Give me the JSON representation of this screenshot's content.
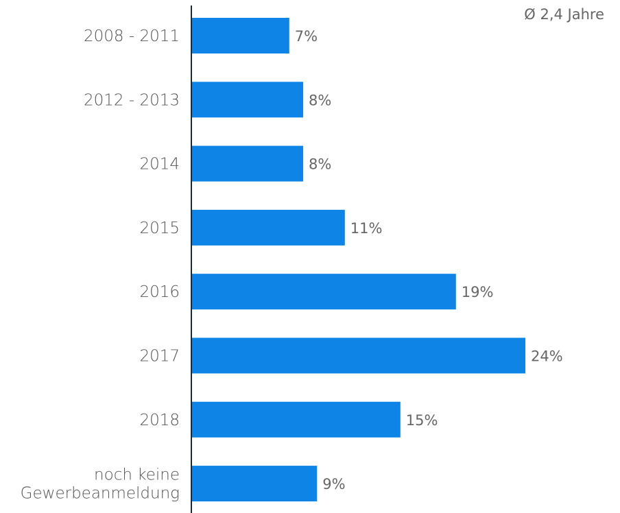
{
  "chart_data": {
    "type": "bar",
    "orientation": "horizontal",
    "title": "",
    "xlabel": "",
    "ylabel": "",
    "annotation": "Ø 2,4 Jahre",
    "categories": [
      [
        "2008 - 2011"
      ],
      [
        "2012 - 2013"
      ],
      [
        "2014"
      ],
      [
        "2015"
      ],
      [
        "2016"
      ],
      [
        "2017"
      ],
      [
        "2018"
      ],
      [
        "noch keine",
        "Gewerbeanmeldung"
      ]
    ],
    "values": [
      7,
      8,
      8,
      11,
      19,
      24,
      15,
      9
    ],
    "value_labels": [
      "7%",
      "8%",
      "8%",
      "11%",
      "19%",
      "24%",
      "15%",
      "9%"
    ],
    "unit": "%",
    "xlim": [
      0,
      24
    ],
    "bar_color": "#0d84e6",
    "axis_color": "#1a2a3a",
    "grid": false,
    "legend": "none"
  }
}
